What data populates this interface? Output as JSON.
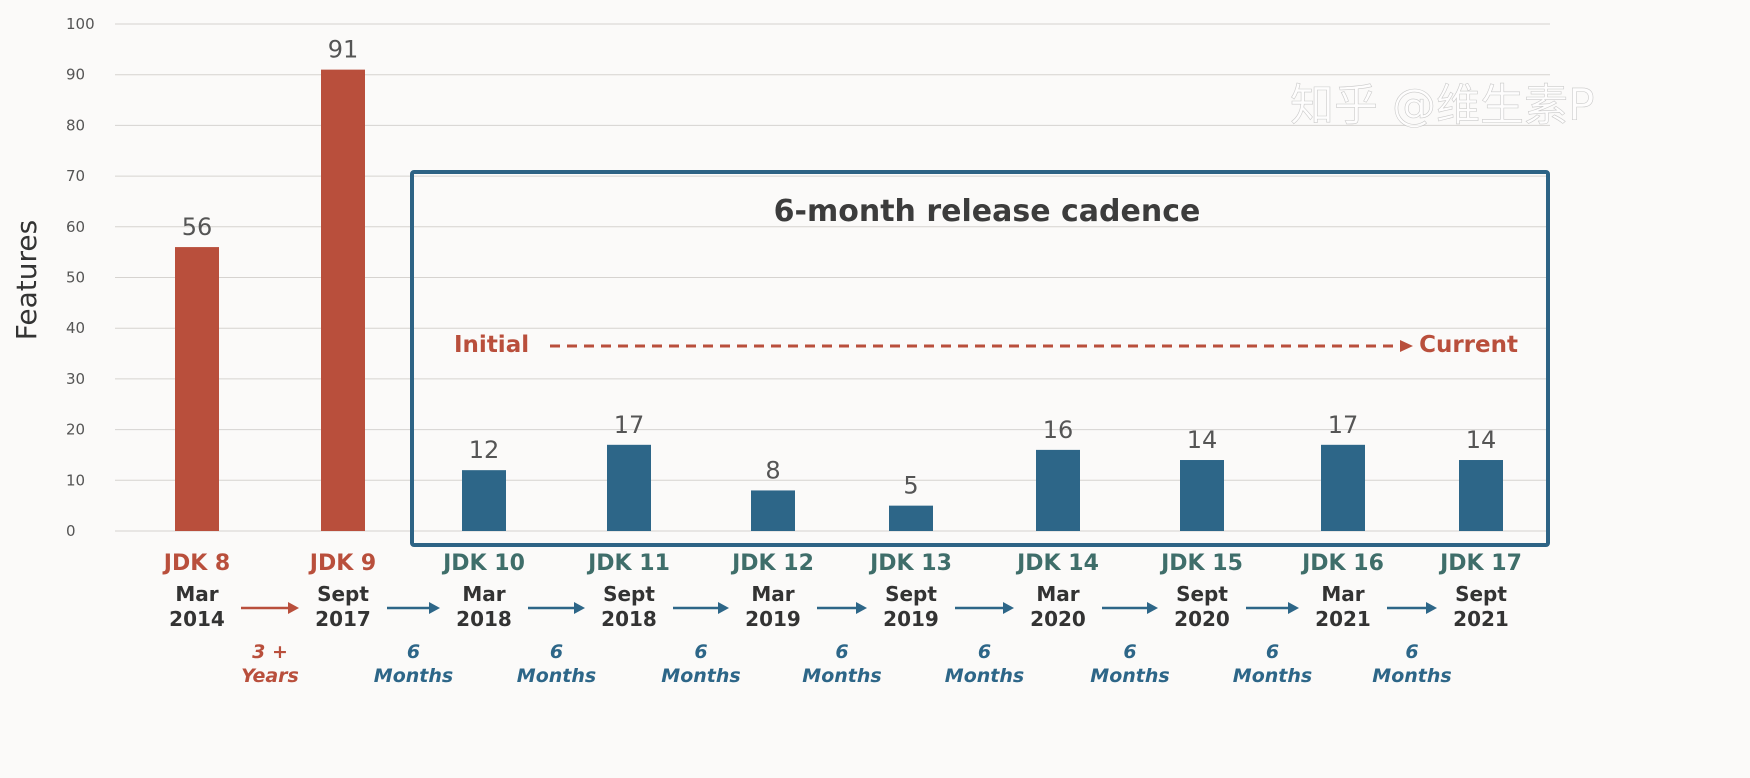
{
  "chart_data": {
    "type": "bar",
    "ylabel": "Features",
    "ylim": [
      0,
      100
    ],
    "yticks": [
      0,
      10,
      20,
      30,
      40,
      50,
      60,
      70,
      80,
      90,
      100
    ],
    "grid": true,
    "categories": [
      "JDK 8",
      "JDK 9",
      "JDK 10",
      "JDK 11",
      "JDK 12",
      "JDK 13",
      "JDK 14",
      "JDK 15",
      "JDK 16",
      "JDK 17"
    ],
    "dates": [
      [
        "Mar",
        "2014"
      ],
      [
        "Sept",
        "2017"
      ],
      [
        "Mar",
        "2018"
      ],
      [
        "Sept",
        "2018"
      ],
      [
        "Mar",
        "2019"
      ],
      [
        "Sept",
        "2019"
      ],
      [
        "Mar",
        "2020"
      ],
      [
        "Sept",
        "2020"
      ],
      [
        "Mar",
        "2021"
      ],
      [
        "Sept",
        "2021"
      ]
    ],
    "values": [
      56,
      91,
      12,
      17,
      8,
      5,
      16,
      14,
      17,
      14
    ],
    "gaps": [
      [
        "3 +",
        "Years"
      ],
      [
        "6",
        "Months"
      ],
      [
        "6",
        "Months"
      ],
      [
        "6",
        "Months"
      ],
      [
        "6",
        "Months"
      ],
      [
        "6",
        "Months"
      ],
      [
        "6",
        "Months"
      ],
      [
        "6",
        "Months"
      ],
      [
        "6",
        "Months"
      ]
    ],
    "annotation_box": {
      "title": "6-month release cadence",
      "from_label": "Initial",
      "to_label": "Current"
    },
    "colors": {
      "old": "#b94f3c",
      "new": "#2d6688",
      "new_label": "#3f6e6a",
      "box": "#2d6385"
    }
  },
  "watermark": "知乎 @维生素P"
}
